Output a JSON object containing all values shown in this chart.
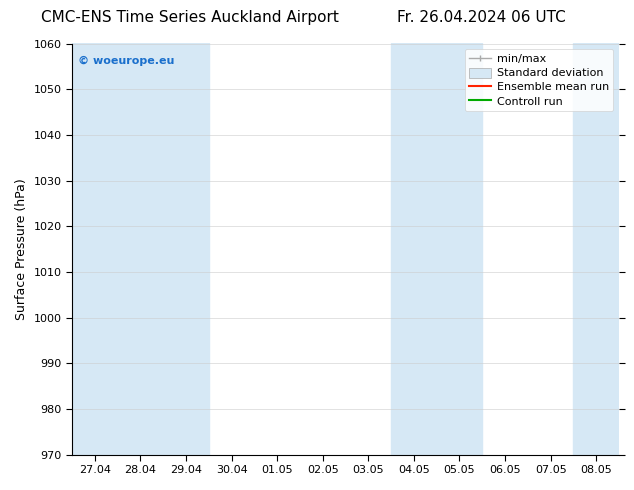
{
  "title_left": "CMC-ENS Time Series Auckland Airport",
  "title_right": "Fr. 26.04.2024 06 UTC",
  "ylabel": "Surface Pressure (hPa)",
  "ylim": [
    970,
    1060
  ],
  "yticks": [
    970,
    980,
    990,
    1000,
    1010,
    1020,
    1030,
    1040,
    1050,
    1060
  ],
  "xlabel_ticks": [
    "27.04",
    "28.04",
    "29.04",
    "30.04",
    "01.05",
    "02.05",
    "03.05",
    "04.05",
    "05.05",
    "06.05",
    "07.05",
    "08.05"
  ],
  "watermark": "© woeurope.eu",
  "watermark_color": "#1a6fcc",
  "bg_color": "#ffffff",
  "plot_bg_color": "#ffffff",
  "shaded_band_color": "#d6e8f5",
  "shaded_band_alpha": 1.0,
  "shaded_columns": [
    0,
    1,
    2,
    7,
    8,
    11
  ],
  "title_fontsize": 11,
  "axis_label_fontsize": 9,
  "tick_fontsize": 8,
  "watermark_fontsize": 8,
  "legend_fontsize": 8
}
